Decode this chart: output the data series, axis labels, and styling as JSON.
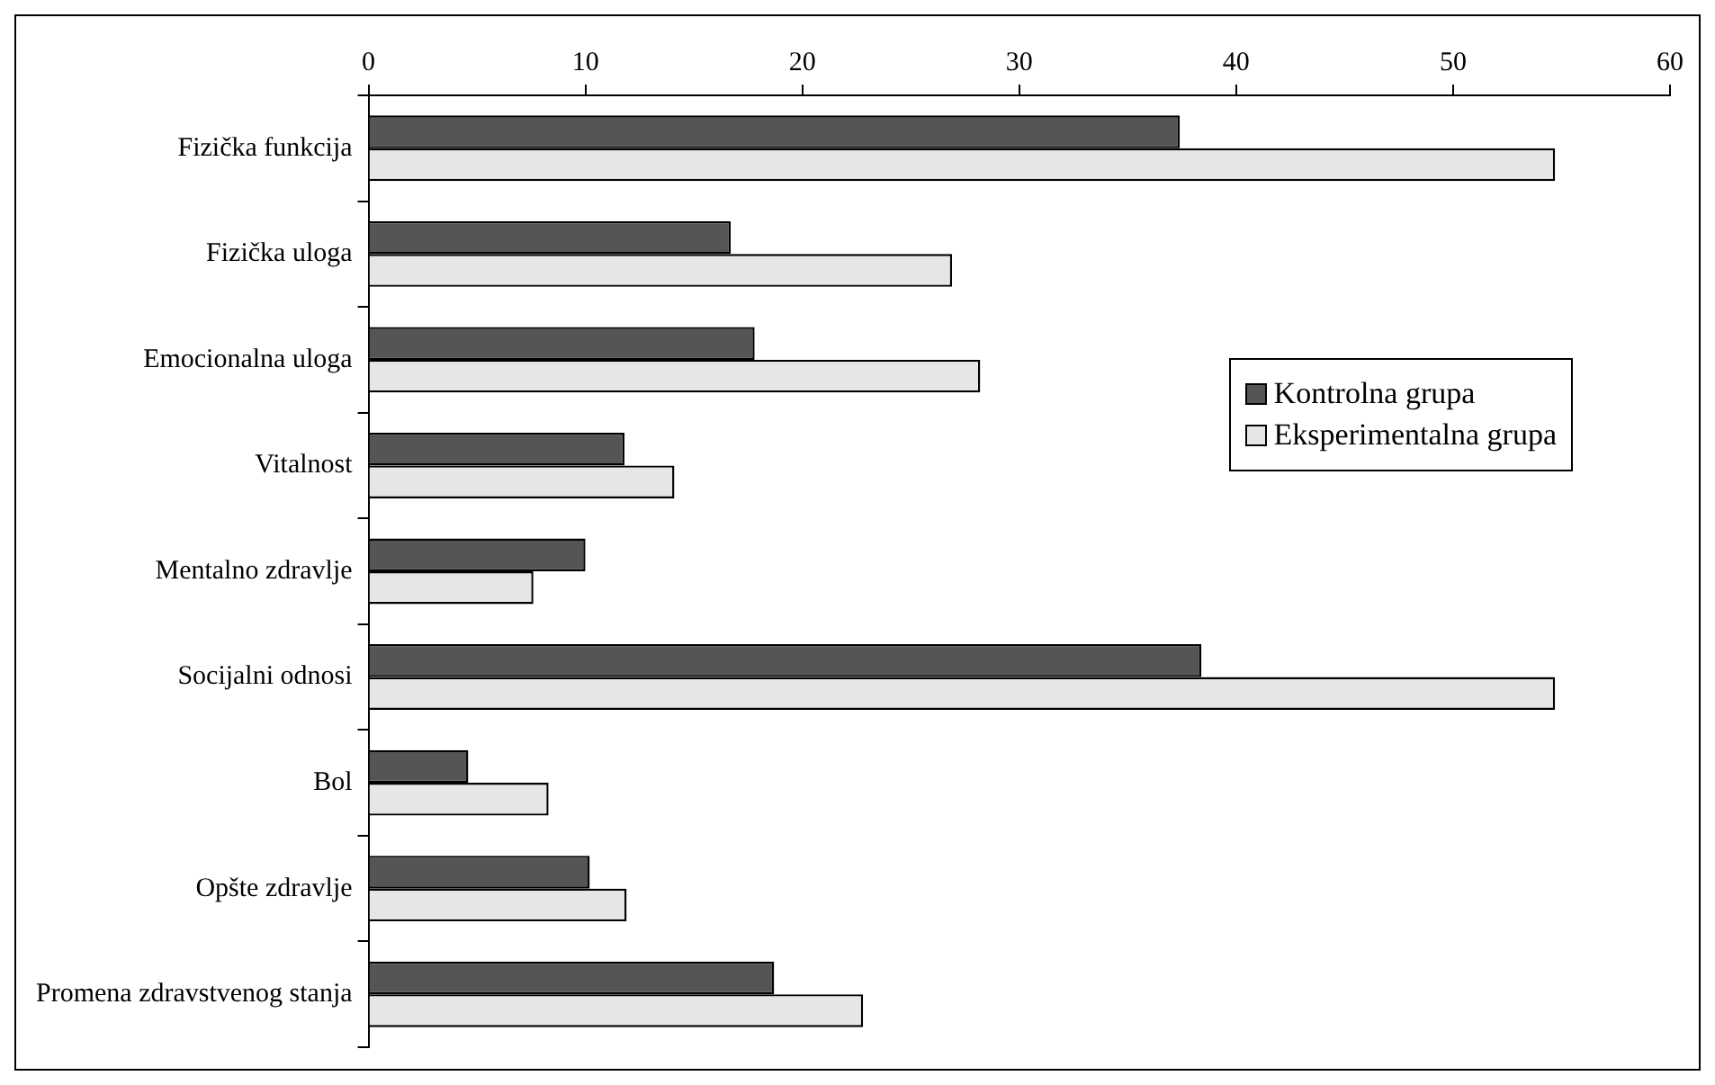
{
  "chart_data": {
    "type": "bar",
    "orientation": "horizontal",
    "categories": [
      "Fizička funkcija",
      "Fizička uloga",
      "Emocionalna uloga",
      "Vitalnost",
      "Mentalno zdravlje",
      "Socijalni odnosi",
      "Bol",
      "Opšte zdravlje",
      "Promena zdravstvenog stanja"
    ],
    "series": [
      {
        "name": "Kontrolna grupa",
        "color": "#555555",
        "values": [
          37.4,
          16.7,
          17.8,
          11.8,
          10.0,
          38.4,
          4.6,
          10.2,
          18.7
        ]
      },
      {
        "name": "Eksperimentalna grupa",
        "color": "#e6e6e6",
        "values": [
          54.7,
          26.9,
          28.2,
          14.1,
          7.6,
          54.7,
          8.3,
          11.9,
          22.8
        ]
      }
    ],
    "xlim": [
      0,
      60
    ],
    "xticks": [
      0,
      10,
      20,
      30,
      40,
      50,
      60
    ],
    "grid": false,
    "legend": "right"
  }
}
